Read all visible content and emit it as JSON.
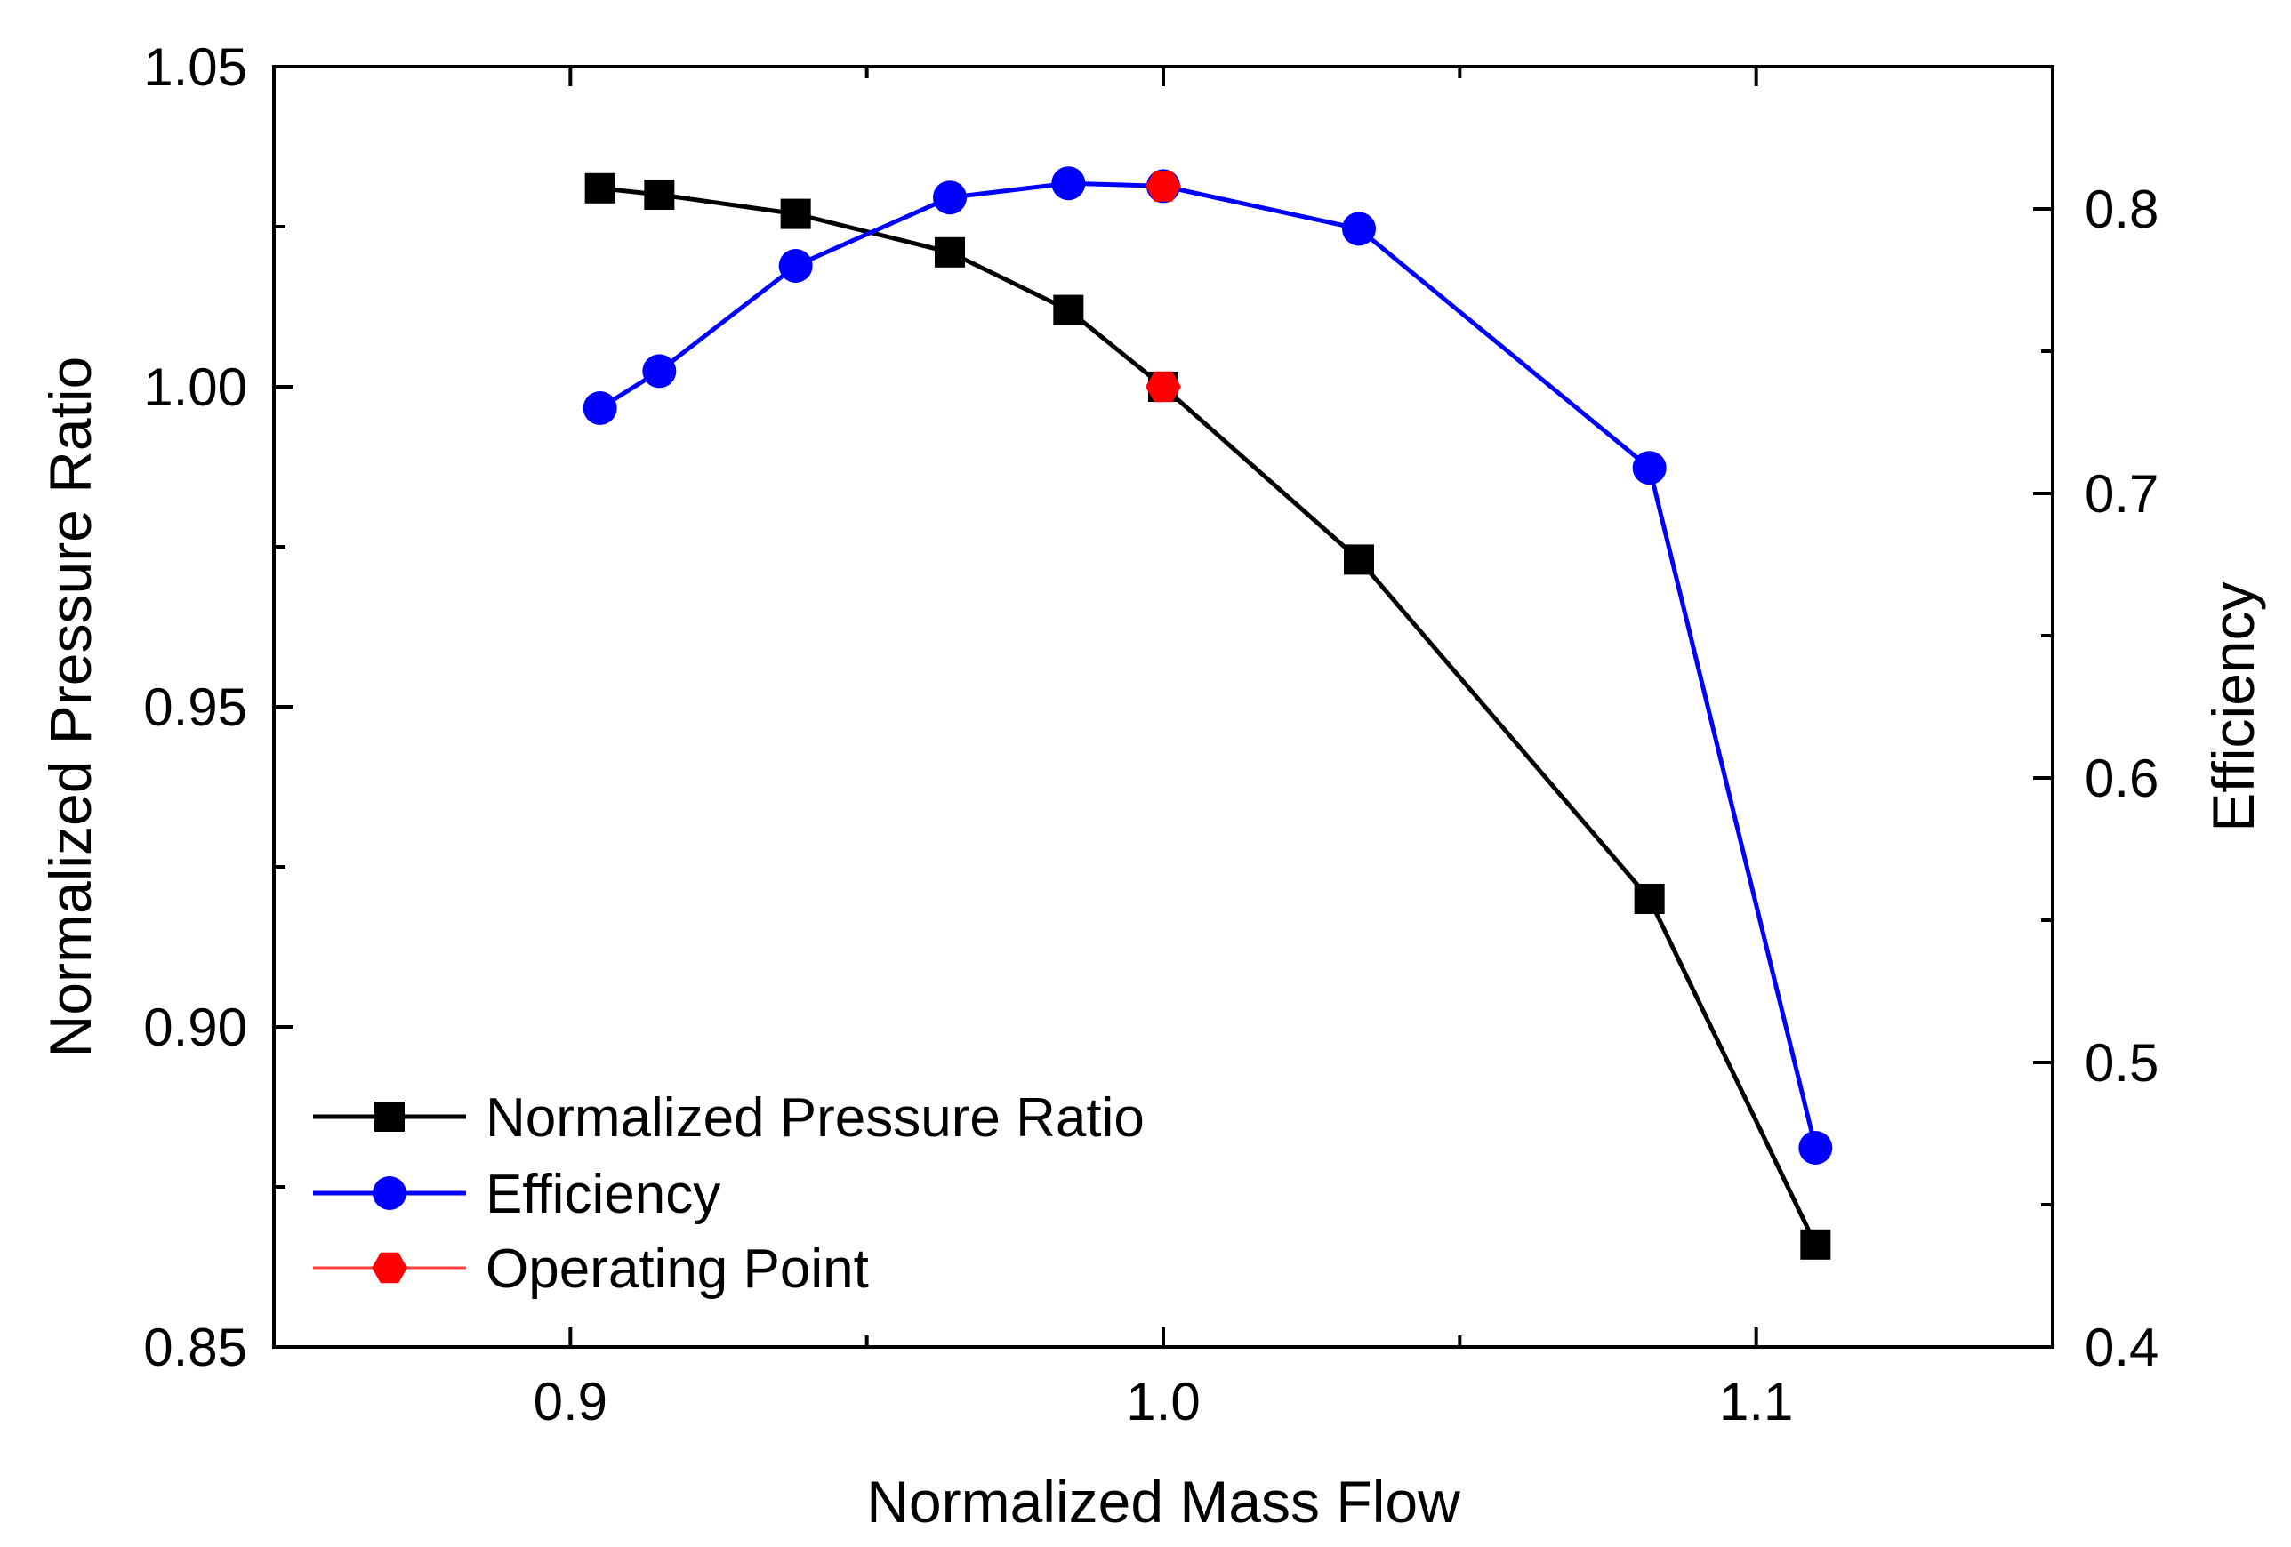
{
  "chart_data": {
    "type": "line",
    "title": "",
    "xlabel": "Normalized Mass Flow",
    "ylabel": "Normalized Pressure Ratio",
    "y2label": "Efficiency",
    "xlim": [
      0.85,
      1.15
    ],
    "ylim": [
      0.85,
      1.05
    ],
    "y2lim": [
      0.4,
      0.85
    ],
    "xticks": [
      {
        "value": 0.9,
        "label": "0.9"
      },
      {
        "value": 1.0,
        "label": "1.0"
      },
      {
        "value": 1.1,
        "label": "1.1"
      }
    ],
    "yticks": [
      {
        "value": 0.85,
        "label": "0.85"
      },
      {
        "value": 0.9,
        "label": "0.90"
      },
      {
        "value": 0.95,
        "label": "0.95"
      },
      {
        "value": 1.0,
        "label": "1.00"
      },
      {
        "value": 1.05,
        "label": "1.05"
      }
    ],
    "y2ticks": [
      {
        "value": 0.4,
        "label": "0.4"
      },
      {
        "value": 0.5,
        "label": "0.5"
      },
      {
        "value": 0.6,
        "label": "0.6"
      },
      {
        "value": 0.7,
        "label": "0.7"
      },
      {
        "value": 0.8,
        "label": "0.8"
      }
    ],
    "legend_position": "bottom-left",
    "series": [
      {
        "name": "Normalized Pressure Ratio",
        "axis": "left",
        "color": "#000000",
        "marker": "square",
        "x": [
          0.905,
          0.915,
          0.938,
          0.964,
          0.984,
          1.0,
          1.033,
          1.082,
          1.11
        ],
        "y": [
          1.031,
          1.03,
          1.027,
          1.021,
          1.012,
          1.0,
          0.973,
          0.92,
          0.866
        ]
      },
      {
        "name": "Efficiency",
        "axis": "right",
        "color": "#0000ff",
        "marker": "circle",
        "x": [
          0.905,
          0.915,
          0.938,
          0.964,
          0.984,
          1.0,
          1.033,
          1.082,
          1.11
        ],
        "y": [
          0.73,
          0.743,
          0.78,
          0.804,
          0.809,
          0.808,
          0.793,
          0.709,
          0.47
        ]
      },
      {
        "name": "Operating Point",
        "axis": "both",
        "color": "#ff0000",
        "marker": "hexagon",
        "points": [
          {
            "x": 1.0,
            "y": 1.0,
            "axis": "left"
          },
          {
            "x": 1.0,
            "y": 0.808,
            "axis": "right"
          }
        ]
      }
    ]
  }
}
